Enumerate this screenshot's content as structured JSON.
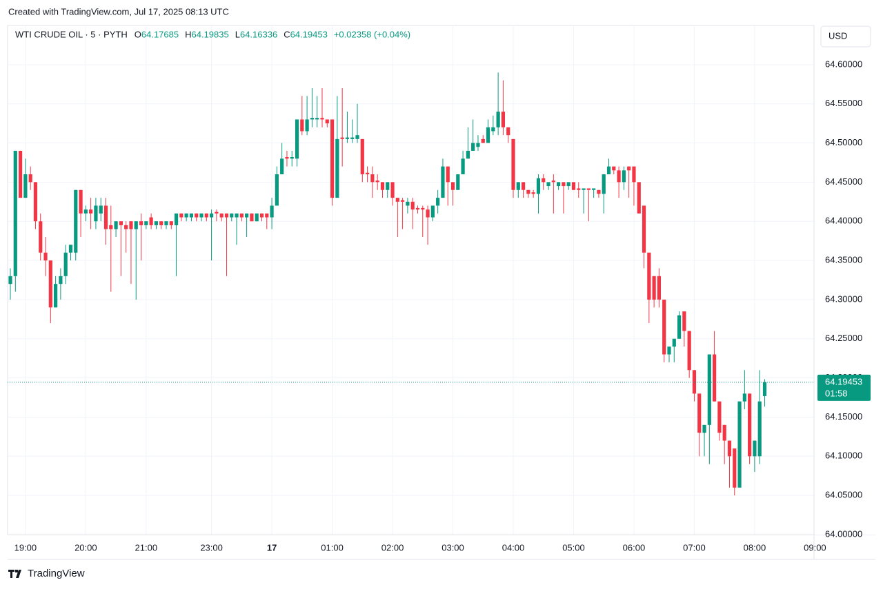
{
  "header": {
    "created": "Created with TradingView.com, Jul 17, 2025 08:13 UTC"
  },
  "footer": {
    "brand": "TradingView"
  },
  "chart_data": {
    "type": "candlestick",
    "title": "WTI CRUDE OIL · 5 · PYTH",
    "ohlc_labels": [
      "O",
      "H",
      "L",
      "C"
    ],
    "change": "+0.02358 (+0.04%)",
    "currency": "USD",
    "countdown": "01:58",
    "up_color": "#089981",
    "down_color": "#f23645",
    "ohlc": [
      [
        64.32,
        64.34,
        64.3,
        64.33
      ],
      [
        64.33,
        64.49,
        64.31,
        64.49
      ],
      [
        64.49,
        64.49,
        64.43,
        64.43
      ],
      [
        64.43,
        64.48,
        64.43,
        64.46
      ],
      [
        64.46,
        64.47,
        64.44,
        64.45
      ],
      [
        64.45,
        64.45,
        64.39,
        64.4
      ],
      [
        64.4,
        64.41,
        64.35,
        64.36
      ],
      [
        64.36,
        64.38,
        64.33,
        64.35
      ],
      [
        64.35,
        64.35,
        64.27,
        64.29
      ],
      [
        64.29,
        64.33,
        64.29,
        64.32
      ],
      [
        64.32,
        64.34,
        64.3,
        64.33
      ],
      [
        64.33,
        64.37,
        64.32,
        64.36
      ],
      [
        64.36,
        64.37,
        64.35,
        64.37
      ],
      [
        64.36,
        64.44,
        64.35,
        64.44
      ],
      [
        64.44,
        64.44,
        64.38,
        64.41
      ],
      [
        64.41,
        64.42,
        64.4,
        64.415
      ],
      [
        64.415,
        64.43,
        64.39,
        64.41
      ],
      [
        64.4,
        64.43,
        64.39,
        64.42
      ],
      [
        64.41,
        64.43,
        64.4,
        64.42
      ],
      [
        64.42,
        64.43,
        64.37,
        64.39
      ],
      [
        64.395,
        64.42,
        64.31,
        64.39
      ],
      [
        64.39,
        64.4,
        64.38,
        64.4
      ],
      [
        64.4,
        64.4,
        64.33,
        64.395
      ],
      [
        64.395,
        64.4,
        64.36,
        64.39
      ],
      [
        64.4,
        64.4,
        64.32,
        64.39
      ],
      [
        64.39,
        64.4,
        64.3,
        64.4
      ],
      [
        64.4,
        64.41,
        64.35,
        64.395
      ],
      [
        64.395,
        64.4,
        64.39,
        64.4
      ],
      [
        64.405,
        64.41,
        64.39,
        64.395
      ],
      [
        64.395,
        64.4,
        64.39,
        64.4
      ],
      [
        64.4,
        64.4,
        64.39,
        64.395
      ],
      [
        64.395,
        64.4,
        64.39,
        64.4
      ],
      [
        64.4,
        64.4,
        64.39,
        64.395
      ],
      [
        64.395,
        64.41,
        64.33,
        64.41
      ],
      [
        64.41,
        64.41,
        64.4,
        64.405
      ],
      [
        64.405,
        64.41,
        64.4,
        64.41
      ],
      [
        64.405,
        64.41,
        64.4,
        64.41
      ],
      [
        64.41,
        64.41,
        64.4,
        64.405
      ],
      [
        64.405,
        64.41,
        64.4,
        64.41
      ],
      [
        64.41,
        64.41,
        64.4,
        64.405
      ],
      [
        64.405,
        64.415,
        64.35,
        64.41
      ],
      [
        64.412,
        64.415,
        64.4,
        64.41
      ],
      [
        64.41,
        64.41,
        64.4,
        64.405
      ],
      [
        64.41,
        64.41,
        64.33,
        64.405
      ],
      [
        64.405,
        64.41,
        64.4,
        64.41
      ],
      [
        64.405,
        64.41,
        64.37,
        64.41
      ],
      [
        64.41,
        64.41,
        64.4,
        64.405
      ],
      [
        64.405,
        64.41,
        64.38,
        64.41
      ],
      [
        64.41,
        64.41,
        64.4,
        64.4
      ],
      [
        64.4,
        64.41,
        64.4,
        64.41
      ],
      [
        64.41,
        64.41,
        64.4,
        64.405
      ],
      [
        64.41,
        64.41,
        64.39,
        64.405
      ],
      [
        64.405,
        64.43,
        64.39,
        64.42
      ],
      [
        64.42,
        64.47,
        64.42,
        64.46
      ],
      [
        64.46,
        64.5,
        64.46,
        64.48
      ],
      [
        64.482,
        64.49,
        64.47,
        64.48
      ],
      [
        64.48,
        64.49,
        64.47,
        64.482
      ],
      [
        64.48,
        64.53,
        64.47,
        64.53
      ],
      [
        64.53,
        64.56,
        64.51,
        64.515
      ],
      [
        64.515,
        64.56,
        64.51,
        64.53
      ],
      [
        64.53,
        64.57,
        64.52,
        64.532
      ],
      [
        64.53,
        64.56,
        64.52,
        64.532
      ],
      [
        64.532,
        64.57,
        64.52,
        64.53
      ],
      [
        64.53,
        64.53,
        64.52,
        64.525
      ],
      [
        64.53,
        64.53,
        64.42,
        64.43
      ],
      [
        64.43,
        64.56,
        64.43,
        64.505
      ],
      [
        64.507,
        64.57,
        64.47,
        64.505
      ],
      [
        64.505,
        64.54,
        64.5,
        64.507
      ],
      [
        64.505,
        64.53,
        64.5,
        64.507
      ],
      [
        64.505,
        64.55,
        64.5,
        64.51
      ],
      [
        64.505,
        64.505,
        64.45,
        64.46
      ],
      [
        64.462,
        64.47,
        64.45,
        64.46
      ],
      [
        64.46,
        64.47,
        64.43,
        64.45
      ],
      [
        64.452,
        64.46,
        64.44,
        64.45
      ],
      [
        64.45,
        64.45,
        64.43,
        64.44
      ],
      [
        64.44,
        64.45,
        64.43,
        64.45
      ],
      [
        64.45,
        64.45,
        64.42,
        64.43
      ],
      [
        64.43,
        64.43,
        64.38,
        64.425
      ],
      [
        64.427,
        64.43,
        64.39,
        64.425
      ],
      [
        64.42,
        64.43,
        64.41,
        64.425
      ],
      [
        64.425,
        64.43,
        64.39,
        64.415
      ],
      [
        64.417,
        64.42,
        64.41,
        64.415
      ],
      [
        64.417,
        64.42,
        64.38,
        64.415
      ],
      [
        64.415,
        64.42,
        64.37,
        64.405
      ],
      [
        64.405,
        64.42,
        64.4,
        64.42
      ],
      [
        64.42,
        64.44,
        64.41,
        64.43
      ],
      [
        64.43,
        64.48,
        64.43,
        64.47
      ],
      [
        64.47,
        64.47,
        64.42,
        64.45
      ],
      [
        64.45,
        64.45,
        64.42,
        64.44
      ],
      [
        64.44,
        64.46,
        64.44,
        64.46
      ],
      [
        64.46,
        64.49,
        64.46,
        64.48
      ],
      [
        64.48,
        64.52,
        64.48,
        64.49
      ],
      [
        64.49,
        64.53,
        64.49,
        64.5
      ],
      [
        64.495,
        64.51,
        64.49,
        64.5
      ],
      [
        64.505,
        64.51,
        64.5,
        64.5
      ],
      [
        64.5,
        64.53,
        64.5,
        64.52
      ],
      [
        64.515,
        64.535,
        64.51,
        64.52
      ],
      [
        64.52,
        64.59,
        64.51,
        64.54
      ],
      [
        64.54,
        64.58,
        64.51,
        64.52
      ],
      [
        64.52,
        64.52,
        64.5,
        64.51
      ],
      [
        64.505,
        64.505,
        64.43,
        64.44
      ],
      [
        64.44,
        64.45,
        64.43,
        64.45
      ],
      [
        64.45,
        64.45,
        64.43,
        64.44
      ],
      [
        64.44,
        64.44,
        64.43,
        64.435
      ],
      [
        64.437,
        64.44,
        64.43,
        64.435
      ],
      [
        64.435,
        64.46,
        64.41,
        64.455
      ],
      [
        64.455,
        64.46,
        64.44,
        64.45
      ],
      [
        64.445,
        64.45,
        64.44,
        64.45
      ],
      [
        64.452,
        64.46,
        64.41,
        64.45
      ],
      [
        64.445,
        64.45,
        64.44,
        64.45
      ],
      [
        64.45,
        64.45,
        64.41,
        64.445
      ],
      [
        64.445,
        64.45,
        64.44,
        64.45
      ],
      [
        64.45,
        64.45,
        64.44,
        64.44
      ],
      [
        64.442,
        64.45,
        64.43,
        64.44
      ],
      [
        64.44,
        64.44,
        64.41,
        64.442
      ],
      [
        64.442,
        64.44,
        64.4,
        64.44
      ],
      [
        64.44,
        64.44,
        64.43,
        64.442
      ],
      [
        64.44,
        64.44,
        64.43,
        64.435
      ],
      [
        64.435,
        64.46,
        64.41,
        64.46
      ],
      [
        64.46,
        64.48,
        64.46,
        64.47
      ],
      [
        64.47,
        64.47,
        64.46,
        64.465
      ],
      [
        64.465,
        64.47,
        64.43,
        64.45
      ],
      [
        64.45,
        64.47,
        64.44,
        64.465
      ],
      [
        64.47,
        64.47,
        64.43,
        64.465
      ],
      [
        64.47,
        64.47,
        64.42,
        64.45
      ],
      [
        64.45,
        64.45,
        64.41,
        64.41
      ],
      [
        64.42,
        64.42,
        64.34,
        64.36
      ],
      [
        64.36,
        64.36,
        64.27,
        64.3
      ],
      [
        64.33,
        64.33,
        64.29,
        64.3
      ],
      [
        64.33,
        64.34,
        64.29,
        64.3
      ],
      [
        64.3,
        64.3,
        64.22,
        64.23
      ],
      [
        64.23,
        64.24,
        64.22,
        64.24
      ],
      [
        64.24,
        64.25,
        64.22,
        64.25
      ],
      [
        64.25,
        64.285,
        64.25,
        64.28
      ],
      [
        64.285,
        64.285,
        64.24,
        64.26
      ],
      [
        64.26,
        64.26,
        64.2,
        64.21
      ],
      [
        64.21,
        64.21,
        64.17,
        64.18
      ],
      [
        64.18,
        64.18,
        64.1,
        64.13
      ],
      [
        64.13,
        64.14,
        64.1,
        64.14
      ],
      [
        64.14,
        64.23,
        64.09,
        64.23
      ],
      [
        64.23,
        64.26,
        64.17,
        64.17
      ],
      [
        64.17,
        64.17,
        64.12,
        64.13
      ],
      [
        64.14,
        64.14,
        64.09,
        64.12
      ],
      [
        64.12,
        64.12,
        64.06,
        64.1
      ],
      [
        64.11,
        64.11,
        64.05,
        64.06
      ],
      [
        64.06,
        64.17,
        64.06,
        64.17
      ],
      [
        64.17,
        64.21,
        64.16,
        64.18
      ],
      [
        64.18,
        64.18,
        64.09,
        64.1
      ],
      [
        64.1,
        64.12,
        64.08,
        64.12
      ],
      [
        64.1,
        64.21,
        64.09,
        64.17
      ],
      [
        64.17685,
        64.19835,
        64.16336,
        64.19453
      ]
    ],
    "ylim": [
      64.0,
      64.65
    ],
    "yticks": [
      {
        "value": 64.0,
        "label": "64.00000"
      },
      {
        "value": 64.05,
        "label": "64.05000"
      },
      {
        "value": 64.1,
        "label": "64.10000"
      },
      {
        "value": 64.15,
        "label": "64.15000"
      },
      {
        "value": 64.2,
        "label": "64.20000"
      },
      {
        "value": 64.25,
        "label": "64.25000"
      },
      {
        "value": 64.3,
        "label": "64.30000"
      },
      {
        "value": 64.35,
        "label": "64.35000"
      },
      {
        "value": 64.4,
        "label": "64.40000"
      },
      {
        "value": 64.45,
        "label": "64.45000"
      },
      {
        "value": 64.5,
        "label": "64.50000"
      },
      {
        "value": 64.55,
        "label": "64.55000"
      },
      {
        "value": 64.6,
        "label": "64.60000"
      }
    ],
    "xlim": [
      -0.4,
      159.8
    ],
    "xticks": [
      {
        "value": 3,
        "label": "19:00"
      },
      {
        "value": 15,
        "label": "20:00"
      },
      {
        "value": 27,
        "label": "21:00"
      },
      {
        "value": 40,
        "label": "23:00"
      },
      {
        "value": 52,
        "label": "17"
      },
      {
        "value": 64,
        "label": "01:00"
      },
      {
        "value": 76,
        "label": "02:00"
      },
      {
        "value": 88,
        "label": "03:00"
      },
      {
        "value": 100,
        "label": "04:00"
      },
      {
        "value": 112,
        "label": "05:00"
      },
      {
        "value": 124,
        "label": "06:00"
      },
      {
        "value": 136,
        "label": "07:00"
      },
      {
        "value": 148,
        "label": "08:00"
      },
      {
        "value": 160,
        "label": "09:00"
      }
    ],
    "grid": true
  }
}
